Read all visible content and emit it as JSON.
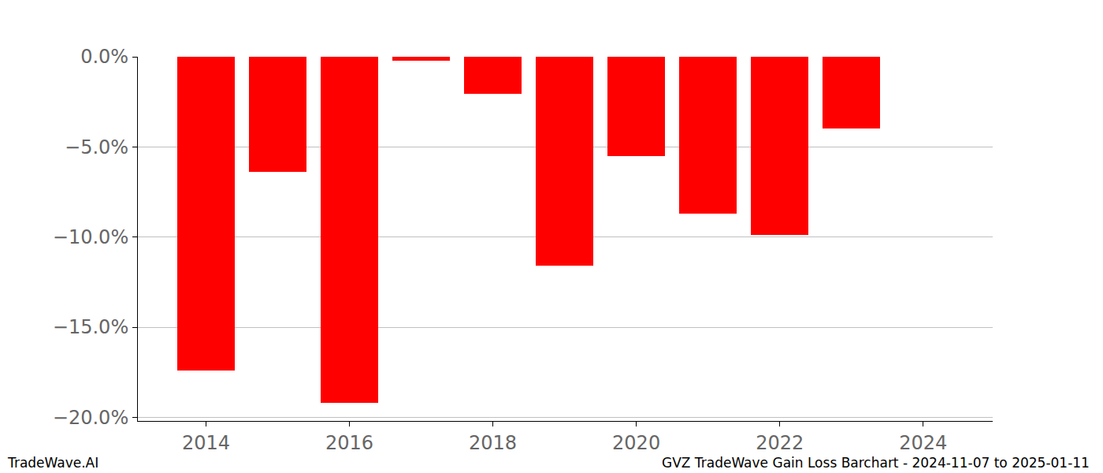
{
  "chart_data": {
    "type": "bar",
    "title": "GVZ TradeWave Gain Loss Barchart - 2024-11-07 to 2025-01-11",
    "annotations": [
      "TradeWave.AI"
    ],
    "x": [
      2014,
      2015,
      2016,
      2017,
      2018,
      2019,
      2020,
      2021,
      2022,
      2023
    ],
    "values": [
      -17.4,
      -6.4,
      -19.2,
      -0.2,
      -2.05,
      -11.6,
      -5.5,
      -8.7,
      -9.9,
      -4.0
    ],
    "color": "#ff0000",
    "xlim": [
      2013.05,
      2024.97
    ],
    "xticks": [
      2014,
      2016,
      2018,
      2020,
      2022,
      2024
    ],
    "ylim": [
      -20.2,
      0
    ],
    "yticks": [
      {
        "value": 0,
        "label": "0.0%"
      },
      {
        "value": -5,
        "label": "−5.0%"
      },
      {
        "value": -10,
        "label": "−10.0%"
      },
      {
        "value": -15,
        "label": "−15.0%"
      },
      {
        "value": -20,
        "label": "−20.0%"
      }
    ],
    "grid": true
  }
}
